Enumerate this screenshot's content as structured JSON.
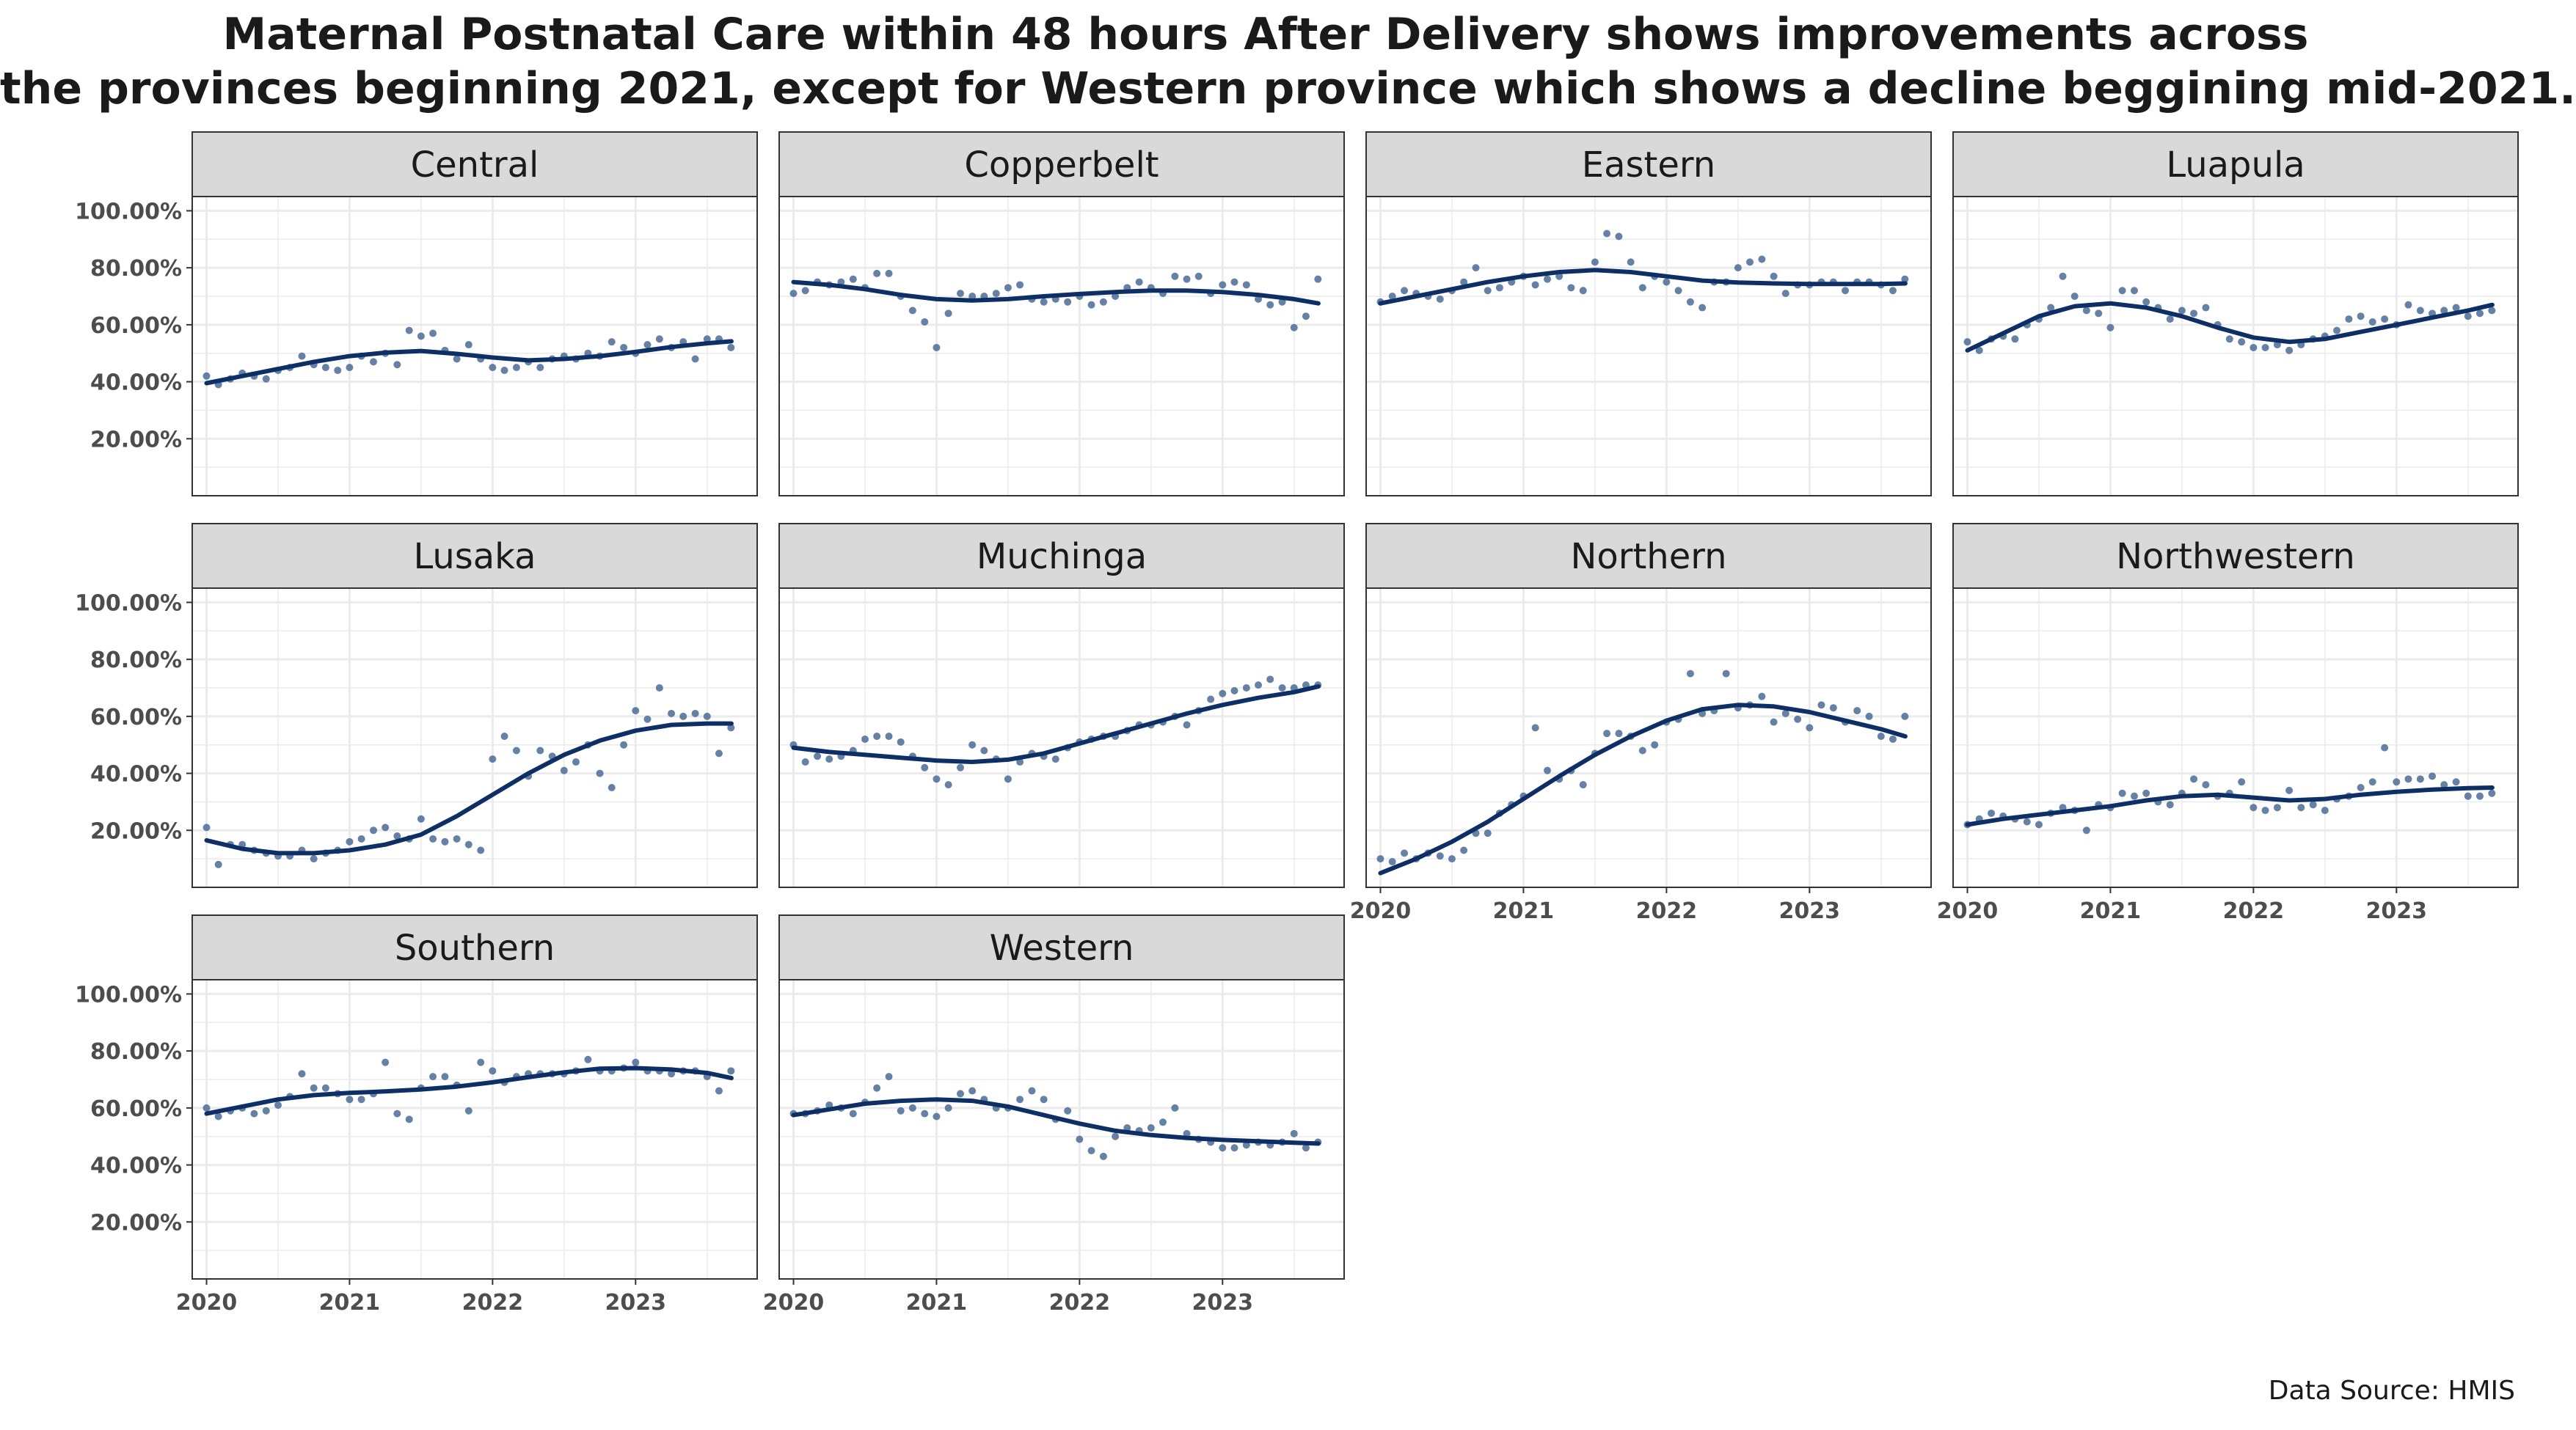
{
  "title": {
    "line1": "Maternal Postnatal Care within 48 hours After Delivery shows improvements across",
    "line2": "the provinces beginning 2021, except for Western province which shows a decline beggining mid-2021."
  },
  "source": "Data Source: HMIS",
  "colors": {
    "point": "#4a6b96",
    "line": "#0d2f66",
    "strip": "#d9d9d9",
    "grid": "#ebebeb"
  },
  "chart_data": {
    "type": "scatter",
    "subtype": "faceted scatter with smoothed trend line",
    "x_unit": "year",
    "xlim": [
      2019.9,
      2023.85
    ],
    "x_ticks": [
      2020,
      2021,
      2022,
      2023
    ],
    "x_tick_labels": [
      "2020",
      "2021",
      "2022",
      "2023"
    ],
    "ylim": [
      0,
      105
    ],
    "y_ticks": [
      20,
      40,
      60,
      80,
      100
    ],
    "y_tick_labels": [
      "20.00%",
      "40.00%",
      "60.00%",
      "80.00%",
      "100.00%"
    ],
    "facet_columns": 4,
    "x": [
      2020.0,
      2020.083,
      2020.167,
      2020.25,
      2020.333,
      2020.417,
      2020.5,
      2020.583,
      2020.667,
      2020.75,
      2020.833,
      2020.917,
      2021.0,
      2021.083,
      2021.167,
      2021.25,
      2021.333,
      2021.417,
      2021.5,
      2021.583,
      2021.667,
      2021.75,
      2021.833,
      2021.917,
      2022.0,
      2022.083,
      2022.167,
      2022.25,
      2022.333,
      2022.417,
      2022.5,
      2022.583,
      2022.667,
      2022.75,
      2022.833,
      2022.917,
      2023.0,
      2023.083,
      2023.167,
      2023.25,
      2023.333,
      2023.417,
      2023.5,
      2023.583,
      2023.667
    ],
    "panels": [
      {
        "name": "Central",
        "points": [
          42,
          39,
          41,
          43,
          42,
          41,
          44,
          45,
          49,
          46,
          45,
          44,
          45,
          49,
          47,
          50,
          46,
          58,
          56,
          57,
          51,
          48,
          53,
          48,
          45,
          44,
          45,
          47,
          45,
          48,
          49,
          48,
          50,
          49,
          54,
          52,
          50,
          53,
          55,
          52,
          54,
          48,
          55,
          55,
          52
        ],
        "trend": [
          [
            2020.0,
            39.5
          ],
          [
            2020.25,
            42.0
          ],
          [
            2020.5,
            44.5
          ],
          [
            2020.75,
            47.0
          ],
          [
            2021.0,
            49.0
          ],
          [
            2021.25,
            50.2
          ],
          [
            2021.5,
            50.8
          ],
          [
            2021.75,
            49.8
          ],
          [
            2022.0,
            48.5
          ],
          [
            2022.25,
            47.5
          ],
          [
            2022.5,
            48.0
          ],
          [
            2022.75,
            49.0
          ],
          [
            2023.0,
            50.5
          ],
          [
            2023.25,
            52.2
          ],
          [
            2023.5,
            53.5
          ],
          [
            2023.67,
            54.2
          ]
        ]
      },
      {
        "name": "Copperbelt",
        "points": [
          71,
          72,
          75,
          74,
          75,
          76,
          73,
          78,
          78,
          70,
          65,
          61,
          52,
          64,
          71,
          70,
          70,
          71,
          73,
          74,
          69,
          68,
          69,
          68,
          70,
          67,
          68,
          70,
          73,
          75,
          73,
          71,
          77,
          76,
          77,
          71,
          74,
          75,
          74,
          69,
          67,
          68,
          59,
          63,
          76
        ],
        "trend": [
          [
            2020.0,
            75.0
          ],
          [
            2020.25,
            74.0
          ],
          [
            2020.5,
            72.5
          ],
          [
            2020.75,
            70.5
          ],
          [
            2021.0,
            69.0
          ],
          [
            2021.25,
            68.5
          ],
          [
            2021.5,
            69.0
          ],
          [
            2021.75,
            70.0
          ],
          [
            2022.0,
            70.8
          ],
          [
            2022.25,
            71.5
          ],
          [
            2022.5,
            72.0
          ],
          [
            2022.75,
            72.0
          ],
          [
            2023.0,
            71.5
          ],
          [
            2023.25,
            70.5
          ],
          [
            2023.5,
            69.0
          ],
          [
            2023.67,
            67.5
          ]
        ]
      },
      {
        "name": "Eastern",
        "points": [
          68,
          70,
          72,
          71,
          70,
          69,
          72,
          75,
          80,
          72,
          73,
          75,
          77,
          74,
          76,
          77,
          73,
          72,
          82,
          92,
          91,
          82,
          73,
          77,
          75,
          72,
          68,
          66,
          75,
          75,
          80,
          82,
          83,
          77,
          71,
          74,
          74,
          75,
          75,
          72,
          75,
          75,
          74,
          72,
          76
        ],
        "trend": [
          [
            2020.0,
            67.5
          ],
          [
            2020.25,
            70.0
          ],
          [
            2020.5,
            72.5
          ],
          [
            2020.75,
            75.0
          ],
          [
            2021.0,
            77.0
          ],
          [
            2021.25,
            78.5
          ],
          [
            2021.5,
            79.2
          ],
          [
            2021.75,
            78.5
          ],
          [
            2022.0,
            77.0
          ],
          [
            2022.25,
            75.5
          ],
          [
            2022.5,
            74.8
          ],
          [
            2022.75,
            74.5
          ],
          [
            2023.0,
            74.3
          ],
          [
            2023.25,
            74.3
          ],
          [
            2023.5,
            74.3
          ],
          [
            2023.67,
            74.5
          ]
        ]
      },
      {
        "name": "Luapula",
        "points": [
          54,
          51,
          55,
          56,
          55,
          60,
          62,
          66,
          77,
          70,
          65,
          64,
          59,
          72,
          72,
          68,
          66,
          62,
          65,
          64,
          66,
          60,
          55,
          54,
          52,
          52,
          53,
          51,
          53,
          55,
          56,
          58,
          62,
          63,
          61,
          62,
          60,
          67,
          65,
          64,
          65,
          66,
          63,
          64,
          65
        ],
        "trend": [
          [
            2020.0,
            51.0
          ],
          [
            2020.25,
            57.0
          ],
          [
            2020.5,
            63.0
          ],
          [
            2020.75,
            66.5
          ],
          [
            2021.0,
            67.5
          ],
          [
            2021.25,
            66.0
          ],
          [
            2021.5,
            63.0
          ],
          [
            2021.75,
            59.0
          ],
          [
            2022.0,
            55.5
          ],
          [
            2022.25,
            54.0
          ],
          [
            2022.5,
            55.0
          ],
          [
            2022.75,
            57.5
          ],
          [
            2023.0,
            60.0
          ],
          [
            2023.25,
            62.5
          ],
          [
            2023.5,
            65.0
          ],
          [
            2023.67,
            67.0
          ]
        ]
      },
      {
        "name": "Lusaka",
        "points": [
          21,
          8,
          15,
          15,
          13,
          12,
          11,
          11,
          13,
          10,
          12,
          13,
          16,
          17,
          20,
          21,
          18,
          17,
          24,
          17,
          16,
          17,
          15,
          13,
          45,
          53,
          48,
          39,
          48,
          46,
          41,
          44,
          50,
          40,
          35,
          50,
          62,
          59,
          70,
          61,
          60,
          61,
          60,
          47,
          56
        ],
        "trend": [
          [
            2020.0,
            16.5
          ],
          [
            2020.25,
            13.5
          ],
          [
            2020.5,
            12.0
          ],
          [
            2020.75,
            12.0
          ],
          [
            2021.0,
            13.0
          ],
          [
            2021.25,
            15.0
          ],
          [
            2021.5,
            18.5
          ],
          [
            2021.75,
            25.0
          ],
          [
            2022.0,
            32.5
          ],
          [
            2022.25,
            40.0
          ],
          [
            2022.5,
            46.5
          ],
          [
            2022.75,
            51.5
          ],
          [
            2023.0,
            55.0
          ],
          [
            2023.25,
            57.0
          ],
          [
            2023.5,
            57.5
          ],
          [
            2023.67,
            57.5
          ]
        ]
      },
      {
        "name": "Muchinga",
        "points": [
          50,
          44,
          46,
          45,
          46,
          48,
          52,
          53,
          53,
          51,
          46,
          42,
          38,
          36,
          42,
          50,
          48,
          45,
          38,
          44,
          47,
          46,
          45,
          49,
          51,
          52,
          53,
          53,
          55,
          57,
          57,
          58,
          60,
          57,
          62,
          66,
          68,
          69,
          70,
          71,
          73,
          70,
          70,
          71,
          71
        ],
        "trend": [
          [
            2020.0,
            49.0
          ],
          [
            2020.25,
            47.5
          ],
          [
            2020.5,
            46.5
          ],
          [
            2020.75,
            45.5
          ],
          [
            2021.0,
            44.5
          ],
          [
            2021.25,
            44.0
          ],
          [
            2021.5,
            44.8
          ],
          [
            2021.75,
            47.0
          ],
          [
            2022.0,
            50.5
          ],
          [
            2022.25,
            54.0
          ],
          [
            2022.5,
            57.5
          ],
          [
            2022.75,
            61.0
          ],
          [
            2023.0,
            64.0
          ],
          [
            2023.25,
            66.5
          ],
          [
            2023.5,
            68.5
          ],
          [
            2023.67,
            70.5
          ]
        ]
      },
      {
        "name": "Northern",
        "points": [
          10,
          9,
          12,
          10,
          12,
          11,
          10,
          13,
          19,
          19,
          26,
          29,
          32,
          56,
          41,
          38,
          41,
          36,
          47,
          54,
          54,
          53,
          48,
          50,
          58,
          59,
          75,
          61,
          62,
          75,
          63,
          64,
          67,
          58,
          61,
          59,
          56,
          64,
          63,
          58,
          62,
          60,
          53,
          52,
          60
        ],
        "trend": [
          [
            2020.0,
            5.0
          ],
          [
            2020.25,
            10.0
          ],
          [
            2020.5,
            16.0
          ],
          [
            2020.75,
            23.0
          ],
          [
            2021.0,
            31.0
          ],
          [
            2021.25,
            39.0
          ],
          [
            2021.5,
            46.5
          ],
          [
            2021.75,
            53.0
          ],
          [
            2022.0,
            58.5
          ],
          [
            2022.25,
            62.5
          ],
          [
            2022.5,
            64.0
          ],
          [
            2022.75,
            63.5
          ],
          [
            2023.0,
            61.5
          ],
          [
            2023.25,
            58.5
          ],
          [
            2023.5,
            55.5
          ],
          [
            2023.67,
            53.0
          ]
        ]
      },
      {
        "name": "Northwestern",
        "points": [
          22,
          24,
          26,
          25,
          24,
          23,
          22,
          26,
          28,
          27,
          20,
          29,
          28,
          33,
          32,
          33,
          30,
          29,
          33,
          38,
          36,
          32,
          33,
          37,
          28,
          27,
          28,
          34,
          28,
          29,
          27,
          31,
          32,
          35,
          37,
          49,
          37,
          38,
          38,
          39,
          36,
          37,
          32,
          32,
          33
        ],
        "trend": [
          [
            2020.0,
            22.0
          ],
          [
            2020.25,
            24.0
          ],
          [
            2020.5,
            25.5
          ],
          [
            2020.75,
            27.0
          ],
          [
            2021.0,
            28.5
          ],
          [
            2021.25,
            30.5
          ],
          [
            2021.5,
            32.0
          ],
          [
            2021.75,
            32.5
          ],
          [
            2022.0,
            31.5
          ],
          [
            2022.25,
            30.5
          ],
          [
            2022.5,
            31.0
          ],
          [
            2022.75,
            32.5
          ],
          [
            2023.0,
            33.5
          ],
          [
            2023.25,
            34.3
          ],
          [
            2023.5,
            34.8
          ],
          [
            2023.67,
            35.0
          ]
        ]
      },
      {
        "name": "Southern",
        "points": [
          60,
          57,
          59,
          60,
          58,
          59,
          61,
          64,
          72,
          67,
          67,
          65,
          63,
          63,
          65,
          76,
          58,
          56,
          67,
          71,
          71,
          68,
          59,
          76,
          73,
          69,
          71,
          72,
          72,
          72,
          72,
          73,
          77,
          73,
          73,
          74,
          76,
          73,
          73,
          72,
          73,
          73,
          71,
          66,
          73
        ],
        "trend": [
          [
            2020.0,
            58.0
          ],
          [
            2020.25,
            60.5
          ],
          [
            2020.5,
            63.0
          ],
          [
            2020.75,
            64.5
          ],
          [
            2021.0,
            65.3
          ],
          [
            2021.25,
            65.8
          ],
          [
            2021.5,
            66.5
          ],
          [
            2021.75,
            67.5
          ],
          [
            2022.0,
            69.0
          ],
          [
            2022.25,
            70.8
          ],
          [
            2022.5,
            72.5
          ],
          [
            2022.75,
            73.8
          ],
          [
            2023.0,
            74.0
          ],
          [
            2023.25,
            73.5
          ],
          [
            2023.5,
            72.3
          ],
          [
            2023.67,
            70.5
          ]
        ]
      },
      {
        "name": "Western",
        "points": [
          58,
          58,
          59,
          61,
          60,
          58,
          62,
          67,
          71,
          59,
          60,
          58,
          57,
          60,
          65,
          66,
          63,
          60,
          60,
          63,
          66,
          63,
          56,
          59,
          49,
          45,
          43,
          50,
          53,
          52,
          53,
          55,
          60,
          51,
          49,
          48,
          46,
          46,
          47,
          48,
          47,
          48,
          51,
          46,
          48
        ],
        "trend": [
          [
            2020.0,
            57.5
          ],
          [
            2020.25,
            59.5
          ],
          [
            2020.5,
            61.5
          ],
          [
            2020.75,
            62.5
          ],
          [
            2021.0,
            63.0
          ],
          [
            2021.25,
            62.5
          ],
          [
            2021.5,
            60.5
          ],
          [
            2021.75,
            57.5
          ],
          [
            2022.0,
            54.5
          ],
          [
            2022.25,
            52.0
          ],
          [
            2022.5,
            50.5
          ],
          [
            2022.75,
            49.5
          ],
          [
            2023.0,
            48.8
          ],
          [
            2023.25,
            48.3
          ],
          [
            2023.5,
            47.8
          ],
          [
            2023.67,
            47.5
          ]
        ]
      }
    ]
  }
}
